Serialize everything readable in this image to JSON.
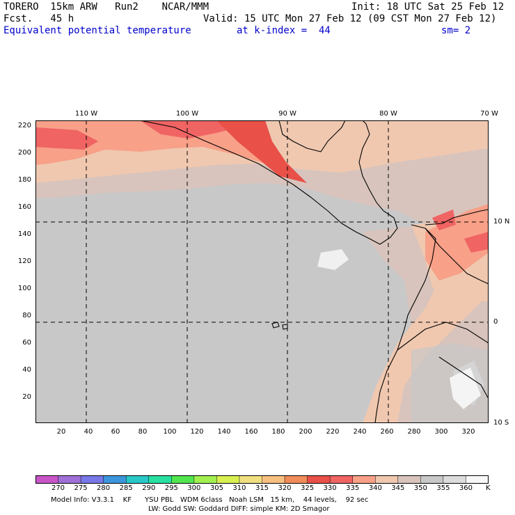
{
  "header": {
    "model": "TORERO  15km ARW   Run2    NCAR/MMM",
    "init": "Init: 18 UTC Sat 25 Feb 12",
    "fcst": "Fcst.   45 h",
    "valid": "Valid: 15 UTC Mon 27 Feb 12 (09 CST Mon 27 Feb 12)",
    "field": "Equivalent potential temperature",
    "kindex": "at k-index =  44",
    "sm": "sm= 2"
  },
  "axes": {
    "top_lon": [
      "110 W",
      "100 W",
      "90 W",
      "80 W",
      "70 W"
    ],
    "right_lat": [
      "10 N",
      "0",
      "10 S"
    ],
    "left_y": [
      "220",
      "200",
      "180",
      "160",
      "140",
      "120",
      "100",
      "80",
      "60",
      "40",
      "20"
    ],
    "bottom_x": [
      "20",
      "40",
      "60",
      "80",
      "100",
      "120",
      "140",
      "160",
      "180",
      "200",
      "220",
      "240",
      "260",
      "280",
      "300",
      "320"
    ]
  },
  "colorbar": {
    "labels": [
      "270",
      "275",
      "280",
      "285",
      "290",
      "295",
      "300",
      "305",
      "310",
      "315",
      "320",
      "325",
      "330",
      "335",
      "340",
      "345",
      "350",
      "355",
      "360"
    ],
    "unit": "K",
    "colors": [
      "#c855c8",
      "#a070d8",
      "#7878e8",
      "#3c96dc",
      "#28c8c8",
      "#28e0a0",
      "#50e650",
      "#a0f050",
      "#d8f050",
      "#f0e080",
      "#f8c080",
      "#f08c5a",
      "#e85048",
      "#f06464",
      "#f8a088",
      "#f0c8b0",
      "#d8c4bc",
      "#c8c8c8",
      "#dcdcdc",
      "#f8f8f8"
    ]
  },
  "footer": {
    "line1": "Model Info: V3.3.1    KF      YSU PBL   WDM 6class   Noah LSM   15 km,    44 levels,    92 sec",
    "line2": "LW: Godd SW: Goddard DIFF: simple KM: 2D Smagor"
  },
  "map_colors": {
    "base": "#c8c8c8",
    "warm1": "#d8c4bc",
    "warm2": "#f0c8b0",
    "warm3": "#f8a088",
    "warm4": "#f06464",
    "hot": "#e85048",
    "white": "#f0f0f0"
  }
}
